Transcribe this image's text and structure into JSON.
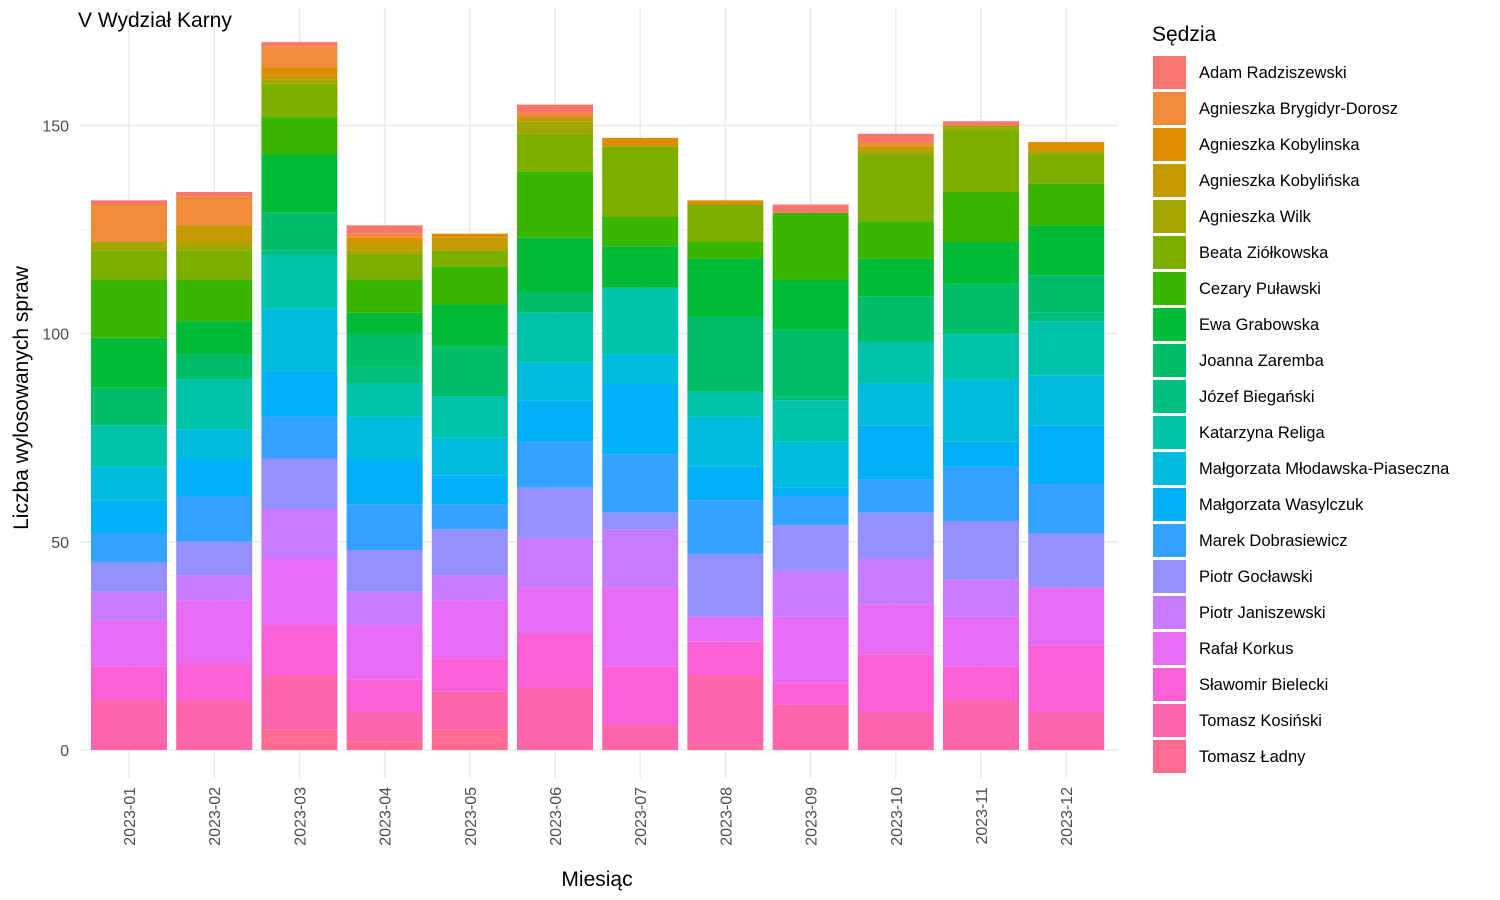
{
  "chart_data": {
    "type": "bar",
    "stacked": true,
    "title": "V Wydział Karny",
    "xlabel": "Miesiąc",
    "ylabel": "Liczba wylosowanych spraw",
    "ylim": [
      0,
      170
    ],
    "yticks": [
      0,
      50,
      100,
      150
    ],
    "grid": true,
    "legend_title": "Sędzia",
    "legend_position": "right",
    "categories": [
      "2023-01",
      "2023-02",
      "2023-03",
      "2023-04",
      "2023-05",
      "2023-06",
      "2023-07",
      "2023-08",
      "2023-09",
      "2023-10",
      "2023-11",
      "2023-12"
    ],
    "series": [
      {
        "name": "Tomasz Ładny",
        "color": "#FF6C91",
        "values": [
          0,
          0,
          5,
          2,
          5,
          0,
          0,
          1,
          0,
          0,
          0,
          0
        ]
      },
      {
        "name": "Tomasz Kosiński",
        "color": "#FF65AE",
        "values": [
          12,
          12,
          13,
          7,
          9,
          15,
          6,
          17,
          11,
          9,
          12,
          9
        ]
      },
      {
        "name": "Sławomir Bielecki",
        "color": "#FB61D7",
        "values": [
          8,
          9,
          12,
          8,
          8,
          13,
          14,
          8,
          5,
          14,
          8,
          16
        ]
      },
      {
        "name": "Rafał Korkus",
        "color": "#E76BF3",
        "values": [
          11,
          15,
          16,
          13,
          14,
          11,
          19,
          6,
          16,
          12,
          12,
          14
        ]
      },
      {
        "name": "Piotr Janiszewski",
        "color": "#C77CFF",
        "values": [
          7,
          6,
          12,
          8,
          6,
          12,
          14,
          0,
          11,
          11,
          9,
          0
        ]
      },
      {
        "name": "Piotr Gocławski",
        "color": "#9590FF",
        "values": [
          7,
          8,
          12,
          10,
          11,
          12,
          4,
          15,
          11,
          11,
          14,
          13
        ]
      },
      {
        "name": "Marek Dobrasiewicz",
        "color": "#35A2FF",
        "values": [
          7,
          11,
          10,
          11,
          6,
          11,
          14,
          13,
          7,
          8,
          13,
          12
        ]
      },
      {
        "name": "Małgorzata Wasylczuk",
        "color": "#00B0F6",
        "values": [
          8,
          9,
          11,
          11,
          7,
          10,
          17,
          8,
          2,
          13,
          6,
          14
        ]
      },
      {
        "name": "Małgorzata Młodawska-Piaseczna",
        "color": "#00BBDB",
        "values": [
          8,
          7,
          15,
          10,
          9,
          9,
          7,
          12,
          11,
          10,
          15,
          12
        ]
      },
      {
        "name": "Katarzyna Religa",
        "color": "#00C1AA",
        "values": [
          10,
          12,
          13,
          8,
          10,
          12,
          16,
          6,
          10,
          10,
          11,
          13
        ]
      },
      {
        "name": "Józef Biegański",
        "color": "#00BF7D",
        "values": [
          0,
          0,
          1,
          4,
          0,
          0,
          0,
          0,
          1,
          0,
          0,
          2
        ]
      },
      {
        "name": "Joanna Zaremba",
        "color": "#00BE67",
        "values": [
          9,
          6,
          9,
          8,
          12,
          5,
          0,
          18,
          16,
          11,
          12,
          9
        ]
      },
      {
        "name": "Ewa Grabowska",
        "color": "#00BA38",
        "values": [
          12,
          8,
          14,
          5,
          10,
          13,
          10,
          14,
          12,
          9,
          10,
          12
        ]
      },
      {
        "name": "Cezary Puławski",
        "color": "#39B600",
        "values": [
          14,
          10,
          9,
          8,
          9,
          16,
          7,
          4,
          16,
          9,
          12,
          10
        ]
      },
      {
        "name": "Beata Ziółkowska",
        "color": "#7CAE00",
        "values": [
          7,
          7,
          8,
          6,
          4,
          9,
          17,
          9,
          0,
          16,
          15,
          7
        ]
      },
      {
        "name": "Agnieszka Wilk",
        "color": "#A3A500",
        "values": [
          2,
          2,
          1,
          1,
          0,
          3,
          0,
          0,
          0,
          1,
          1,
          1
        ]
      },
      {
        "name": "Agnieszka Kobylińska",
        "color": "#C49A00",
        "values": [
          0,
          4,
          1,
          2,
          3,
          1,
          0,
          0,
          0,
          1,
          0,
          0
        ]
      },
      {
        "name": "Agnieszka Kobylinska",
        "color": "#DE8C00",
        "values": [
          0,
          0,
          2,
          1,
          1,
          0,
          2,
          1,
          0,
          0,
          0,
          2
        ]
      },
      {
        "name": "Agnieszka Brygidyr-Dorosz",
        "color": "#F08B3A",
        "values": [
          9,
          7,
          5,
          1,
          0,
          1,
          0,
          0,
          0,
          1,
          0,
          0
        ]
      },
      {
        "name": "Adam Radziszewski",
        "color": "#F8766D",
        "values": [
          1,
          1,
          1,
          2,
          0,
          2,
          0,
          0,
          2,
          2,
          1,
          0
        ]
      }
    ],
    "legend_order": [
      "Adam Radziszewski",
      "Agnieszka Brygidyr-Dorosz",
      "Agnieszka Kobylinska",
      "Agnieszka Kobylińska",
      "Agnieszka Wilk",
      "Beata Ziółkowska",
      "Cezary Puławski",
      "Ewa Grabowska",
      "Joanna Zaremba",
      "Józef Biegański",
      "Katarzyna Religa",
      "Małgorzata Młodawska-Piaseczna",
      "Małgorzata Wasylczuk",
      "Marek Dobrasiewicz",
      "Piotr Gocławski",
      "Piotr Janiszewski",
      "Rafał Korkus",
      "Sławomir Bielecki",
      "Tomasz Kosiński",
      "Tomasz Ładny"
    ]
  }
}
